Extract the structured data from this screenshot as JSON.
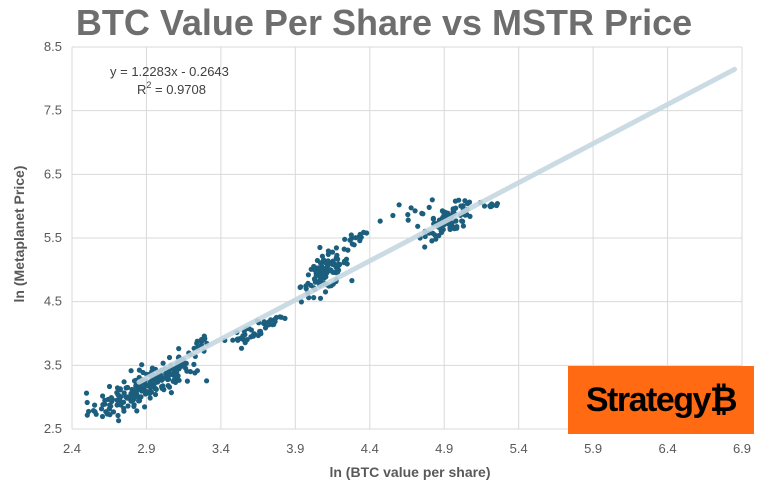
{
  "header": {
    "title": "BTC Value Per Share vs MSTR Price"
  },
  "logo": {
    "text": "Strategy₿",
    "background": "#ff6a13"
  },
  "chart_data": {
    "type": "scatter",
    "title": "BTC Value Per Share vs MSTR Price",
    "xlabel": "ln (BTC value per share)",
    "ylabel": "ln (Metaplanet Price)",
    "xlim": [
      2.4,
      6.9
    ],
    "ylim": [
      2.5,
      8.5
    ],
    "xticks": [
      "2.4",
      "2.9",
      "3.4",
      "3.9",
      "4.4",
      "4.9",
      "5.4",
      "5.9",
      "6.4",
      "6.9"
    ],
    "yticks": [
      "2.5",
      "3.5",
      "4.5",
      "5.5",
      "6.5",
      "7.5",
      "8.5"
    ],
    "grid": true,
    "point_color": "#1b5e7d",
    "trendline": {
      "equation": "y = 1.2283x - 0.2643",
      "r2_label": "R",
      "r2_sup": "2",
      "r2_value": " = 0.9708",
      "slope": 1.2283,
      "intercept": -0.2643,
      "x_range": [
        2.85,
        6.85
      ],
      "color": "#c5d7e1"
    },
    "clusters": [
      {
        "cx": 2.75,
        "cy": 2.95,
        "sx": 0.12,
        "sy": 0.14,
        "n": 70
      },
      {
        "cx": 2.95,
        "cy": 3.25,
        "sx": 0.13,
        "sy": 0.16,
        "n": 130
      },
      {
        "cx": 3.12,
        "cy": 3.55,
        "sx": 0.06,
        "sy": 0.12,
        "n": 25
      },
      {
        "cx": 3.28,
        "cy": 3.87,
        "sx": 0.05,
        "sy": 0.06,
        "n": 10
      },
      {
        "cx": 3.6,
        "cy": 4.0,
        "sx": 0.06,
        "sy": 0.07,
        "n": 30
      },
      {
        "cx": 3.75,
        "cy": 4.2,
        "sx": 0.06,
        "sy": 0.06,
        "n": 15
      },
      {
        "cx": 4.1,
        "cy": 4.95,
        "sx": 0.08,
        "sy": 0.17,
        "n": 110
      },
      {
        "cx": 4.3,
        "cy": 5.45,
        "sx": 0.05,
        "sy": 0.08,
        "n": 15
      },
      {
        "cx": 4.65,
        "cy": 5.85,
        "sx": 0.12,
        "sy": 0.12,
        "n": 12
      },
      {
        "cx": 4.95,
        "cy": 5.8,
        "sx": 0.08,
        "sy": 0.13,
        "n": 90
      },
      {
        "cx": 5.2,
        "cy": 6.0,
        "sx": 0.04,
        "sy": 0.03,
        "n": 8
      }
    ]
  }
}
